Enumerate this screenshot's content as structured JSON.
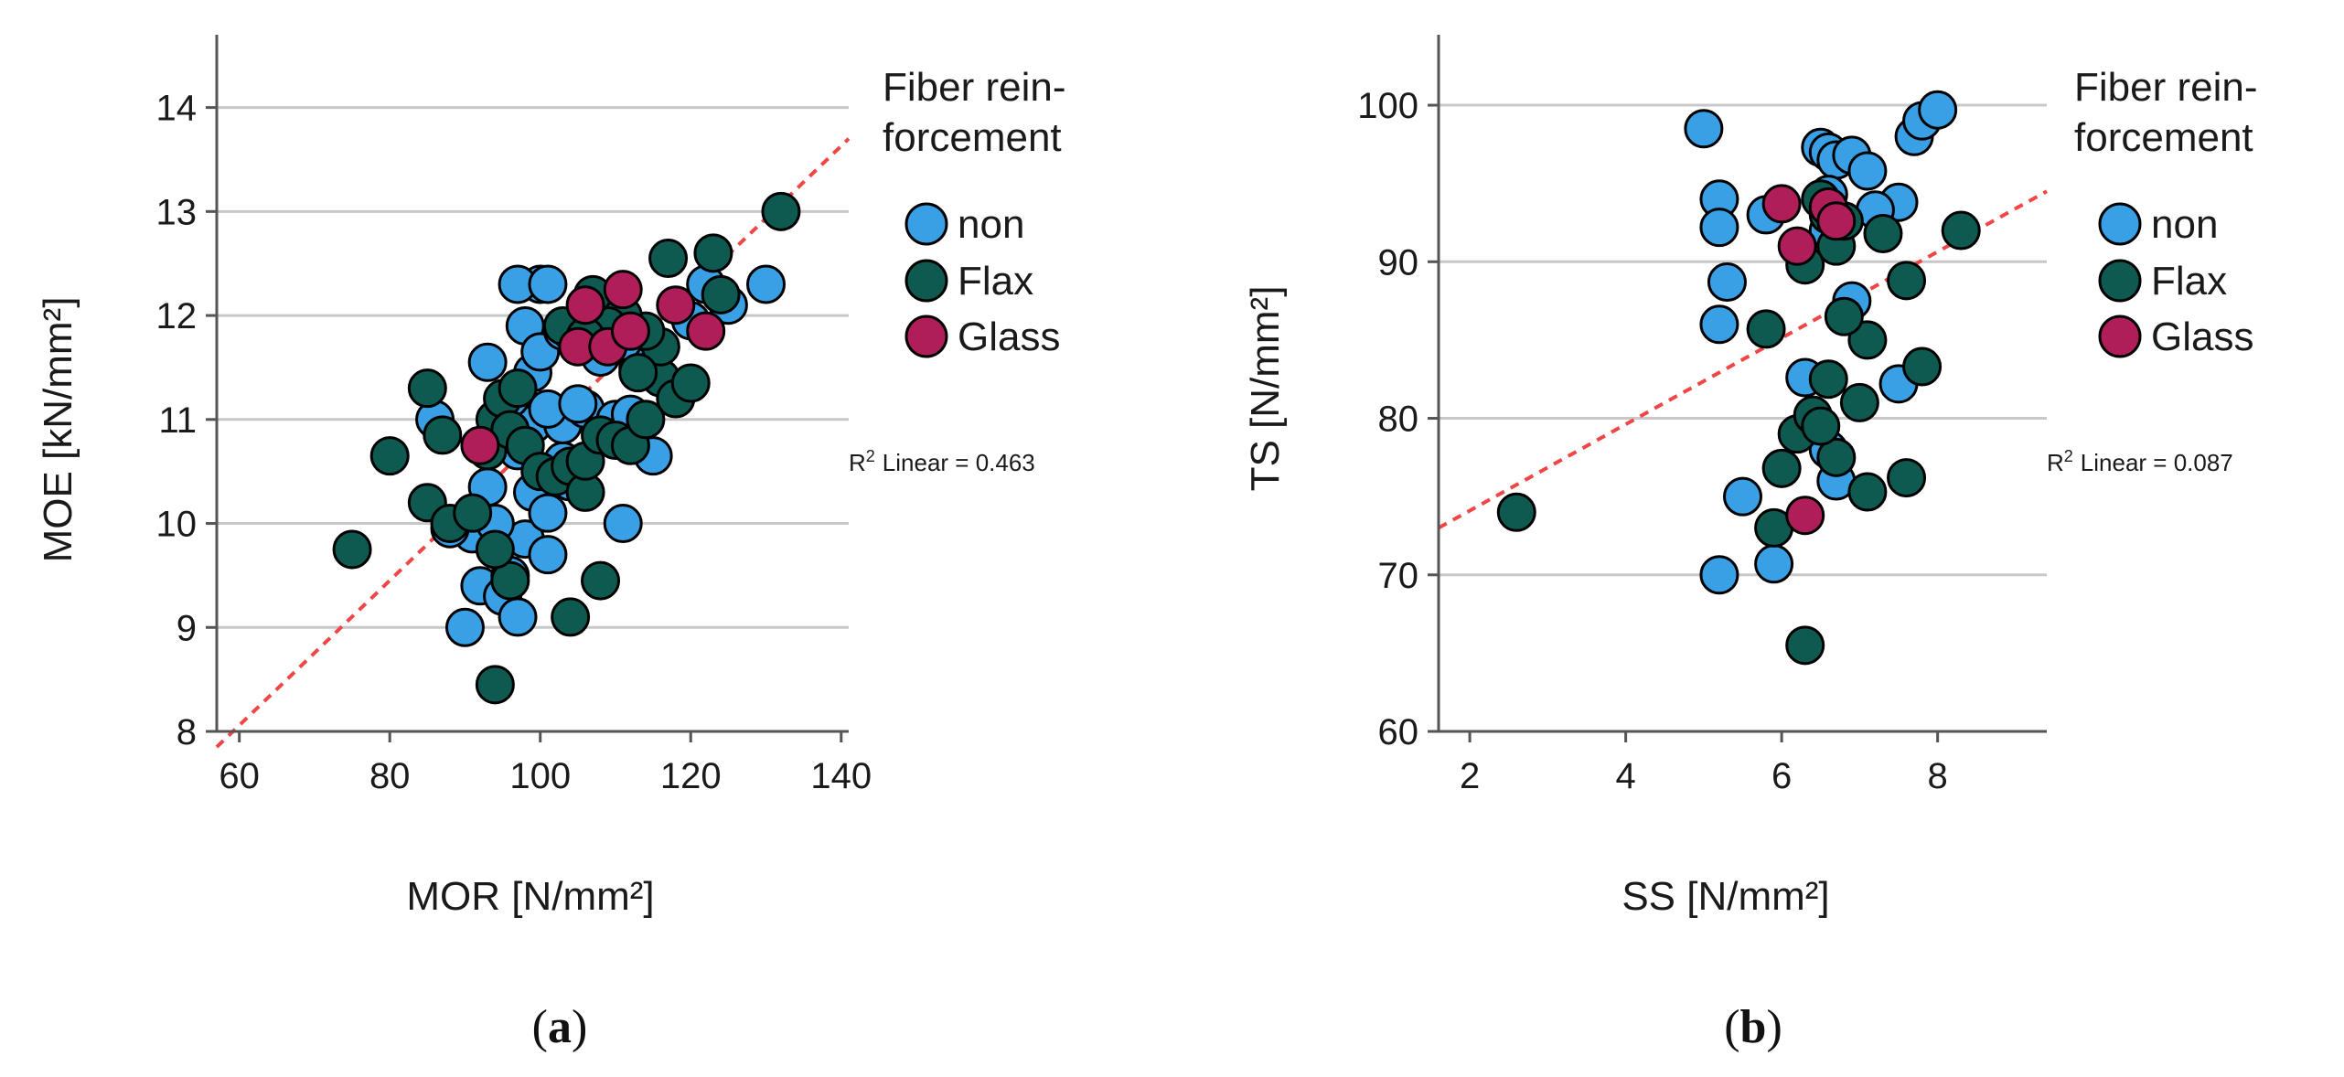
{
  "colors": {
    "non": "#3aa0e6",
    "Flax": "#0f5a50",
    "Glass": "#b01e5a",
    "fit": "#f04646",
    "grid": "#c8c8c8",
    "axis": "#555555"
  },
  "chart_data": [
    {
      "id": "a",
      "type": "scatter",
      "caption_open": "(",
      "caption_letter": "a",
      "caption_close": ")",
      "xlabel": "MOR [N/mm²]",
      "ylabel": "MOE [kN/mm²]",
      "xlim": [
        57,
        141
      ],
      "ylim": [
        8,
        14.7
      ],
      "xticks": [
        60,
        80,
        100,
        120,
        140
      ],
      "yticks": [
        8,
        9,
        10,
        11,
        12,
        13,
        14
      ],
      "grid": "horizontal",
      "legend_title": [
        "Fiber rein-",
        "forcement"
      ],
      "legend": [
        "non",
        "Flax",
        "Glass"
      ],
      "fit": {
        "label": "Linear = 0.463",
        "r2_symbol": "R",
        "r2_sup": "2",
        "x0": 57,
        "y0": 7.85,
        "x1": 141,
        "y1": 13.7
      },
      "series": [
        {
          "name": "non",
          "points": [
            [
              90,
              9.0
            ],
            [
              92,
              9.4
            ],
            [
              95,
              9.3
            ],
            [
              97,
              9.1
            ],
            [
              96,
              9.5
            ],
            [
              91,
              9.9
            ],
            [
              98,
              9.85
            ],
            [
              94,
              10.0
            ],
            [
              101,
              9.7
            ],
            [
              93,
              10.35
            ],
            [
              99,
              10.3
            ],
            [
              97,
              10.7
            ],
            [
              101,
              10.1
            ],
            [
              104,
              10.4
            ],
            [
              103,
              10.6
            ],
            [
              99,
              10.95
            ],
            [
              103,
              10.95
            ],
            [
              106,
              11.1
            ],
            [
              110,
              11.0
            ],
            [
              112,
              11.05
            ],
            [
              115,
              10.65
            ],
            [
              111,
              10.0
            ],
            [
              101,
              11.1
            ],
            [
              96,
              11.2
            ],
            [
              105,
              11.15
            ],
            [
              99,
              11.45
            ],
            [
              98,
              11.9
            ],
            [
              100,
              11.65
            ],
            [
              100,
              12.3
            ],
            [
              97,
              12.3
            ],
            [
              101,
              12.3
            ],
            [
              106,
              11.75
            ],
            [
              108,
              11.6
            ],
            [
              113,
              11.5
            ],
            [
              118,
              11.3
            ],
            [
              120,
              11.95
            ],
            [
              122,
              12.3
            ],
            [
              125,
              12.1
            ],
            [
              130,
              12.3
            ],
            [
              111,
              11.75
            ],
            [
              103,
              11.85
            ],
            [
              93,
              11.55
            ],
            [
              86,
              11.0
            ],
            [
              88,
              9.95
            ]
          ]
        },
        {
          "name": "Flax",
          "points": [
            [
              75,
              9.75
            ],
            [
              80,
              10.65
            ],
            [
              85,
              11.3
            ],
            [
              87,
              10.85
            ],
            [
              85,
              10.2
            ],
            [
              88,
              10.0
            ],
            [
              91,
              10.1
            ],
            [
              93,
              10.7
            ],
            [
              94,
              11.0
            ],
            [
              95,
              11.2
            ],
            [
              96,
              10.9
            ],
            [
              97,
              11.3
            ],
            [
              98,
              10.75
            ],
            [
              100,
              10.5
            ],
            [
              102,
              10.45
            ],
            [
              104,
              10.55
            ],
            [
              106,
              10.3
            ],
            [
              106,
              10.6
            ],
            [
              108,
              10.85
            ],
            [
              110,
              10.8
            ],
            [
              112,
              10.75
            ],
            [
              114,
              11.0
            ],
            [
              116,
              11.4
            ],
            [
              118,
              11.2
            ],
            [
              120,
              11.35
            ],
            [
              116,
              11.7
            ],
            [
              114,
              11.85
            ],
            [
              111,
              12.0
            ],
            [
              109,
              11.9
            ],
            [
              107,
              12.2
            ],
            [
              104,
              11.85
            ],
            [
              103,
              11.9
            ],
            [
              117,
              12.55
            ],
            [
              123,
              12.6
            ],
            [
              124,
              12.2
            ],
            [
              132,
              13.0
            ],
            [
              113,
              11.45
            ],
            [
              96,
              9.45
            ],
            [
              94,
              9.75
            ],
            [
              94,
              8.45
            ],
            [
              104,
              9.1
            ],
            [
              108,
              9.45
            ],
            [
              106,
              11.8
            ]
          ]
        },
        {
          "name": "Glass",
          "points": [
            [
              92,
              10.75
            ],
            [
              106,
              12.1
            ],
            [
              111,
              12.25
            ],
            [
              105,
              11.7
            ],
            [
              109,
              11.7
            ],
            [
              112,
              11.85
            ],
            [
              118,
              12.1
            ],
            [
              122,
              11.85
            ]
          ]
        }
      ]
    },
    {
      "id": "b",
      "type": "scatter",
      "caption_open": "(",
      "caption_letter": "b",
      "caption_close": ")",
      "xlabel": "SS [N/mm²]",
      "ylabel": "TS [N/mm²]",
      "xlim": [
        1.6,
        9.4
      ],
      "ylim": [
        60,
        104.5
      ],
      "xticks": [
        2,
        4,
        6,
        8
      ],
      "yticks": [
        60,
        70,
        80,
        90,
        100
      ],
      "grid": "horizontal",
      "legend_title": [
        "Fiber rein-",
        "forcement"
      ],
      "legend": [
        "non",
        "Flax",
        "Glass"
      ],
      "fit": {
        "label": "Linear = 0.087",
        "r2_symbol": "R",
        "r2_sup": "2",
        "x0": 1.6,
        "y0": 73.0,
        "x1": 9.4,
        "y1": 94.5
      },
      "series": [
        {
          "name": "non",
          "points": [
            [
              5.0,
              98.5
            ],
            [
              5.2,
              94.0
            ],
            [
              5.2,
              92.2
            ],
            [
              5.3,
              88.7
            ],
            [
              5.2,
              86.0
            ],
            [
              5.5,
              75.0
            ],
            [
              5.2,
              70.0
            ],
            [
              5.9,
              70.7
            ],
            [
              5.8,
              93.0
            ],
            [
              6.5,
              97.3
            ],
            [
              6.6,
              97.0
            ],
            [
              6.7,
              96.5
            ],
            [
              6.9,
              96.8
            ],
            [
              7.1,
              95.8
            ],
            [
              7.5,
              93.8
            ],
            [
              7.7,
              98.0
            ],
            [
              7.8,
              99.0
            ],
            [
              8.0,
              99.7
            ],
            [
              6.6,
              92.0
            ],
            [
              6.6,
              94.3
            ],
            [
              6.9,
              87.5
            ],
            [
              6.3,
              82.6
            ],
            [
              6.6,
              78.0
            ],
            [
              6.7,
              76.0
            ],
            [
              7.5,
              82.2
            ],
            [
              7.2,
              93.3
            ]
          ]
        },
        {
          "name": "Flax",
          "points": [
            [
              2.6,
              74.0
            ],
            [
              5.8,
              85.7
            ],
            [
              5.9,
              73.0
            ],
            [
              6.0,
              76.8
            ],
            [
              6.2,
              79.0
            ],
            [
              6.3,
              65.5
            ],
            [
              6.4,
              80.2
            ],
            [
              6.5,
              94.0
            ],
            [
              6.6,
              93.0
            ],
            [
              6.7,
              91.0
            ],
            [
              6.8,
              92.6
            ],
            [
              6.6,
              82.5
            ],
            [
              6.7,
              77.5
            ],
            [
              7.0,
              81.0
            ],
            [
              7.1,
              85.0
            ],
            [
              7.1,
              75.3
            ],
            [
              7.3,
              91.8
            ],
            [
              7.6,
              76.2
            ],
            [
              7.6,
              88.8
            ],
            [
              7.8,
              83.3
            ],
            [
              8.3,
              92.0
            ],
            [
              6.3,
              89.8
            ],
            [
              6.5,
              79.5
            ],
            [
              6.8,
              86.5
            ]
          ]
        },
        {
          "name": "Glass",
          "points": [
            [
              6.0,
              93.7
            ],
            [
              6.2,
              91.0
            ],
            [
              6.3,
              73.8
            ],
            [
              6.6,
              93.5
            ],
            [
              6.7,
              92.6
            ]
          ]
        }
      ]
    }
  ]
}
